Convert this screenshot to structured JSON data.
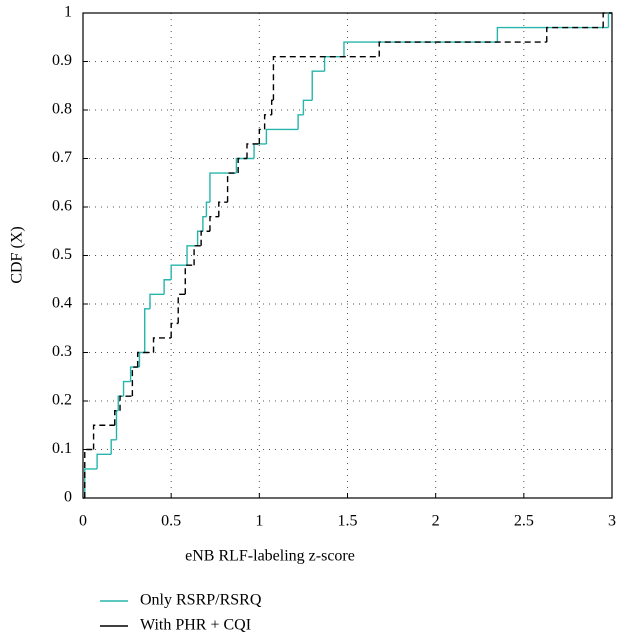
{
  "chart_data": {
    "type": "step",
    "xlabel": "eNB RLF-labeling z-score",
    "ylabel": "CDF (X)",
    "xlim": [
      0,
      3
    ],
    "ylim": [
      0,
      1
    ],
    "xticks": [
      0,
      0.5,
      1,
      1.5,
      2,
      2.5,
      3
    ],
    "yticks": [
      0,
      0.1,
      0.2,
      0.3,
      0.4,
      0.5,
      0.6,
      0.7,
      0.8,
      0.9,
      1
    ],
    "grid": true,
    "series": [
      {
        "name": "Only RSRP/RSRQ",
        "color": "#26b5ac",
        "dash": false,
        "x": [
          0,
          0.01,
          0.08,
          0.16,
          0.19,
          0.2,
          0.23,
          0.27,
          0.32,
          0.35,
          0.38,
          0.46,
          0.5,
          0.59,
          0.65,
          0.68,
          0.7,
          0.72,
          0.87,
          0.97,
          1.04,
          1.22,
          1.25,
          1.3,
          1.37,
          1.48,
          2.35,
          2.98
        ],
        "values": [
          0,
          0.06,
          0.09,
          0.12,
          0.18,
          0.21,
          0.24,
          0.27,
          0.3,
          0.39,
          0.42,
          0.45,
          0.48,
          0.52,
          0.55,
          0.58,
          0.61,
          0.67,
          0.7,
          0.73,
          0.76,
          0.79,
          0.82,
          0.88,
          0.91,
          0.94,
          0.97,
          1
        ]
      },
      {
        "name": "With PHR + CQI",
        "color": "#000000",
        "dash": true,
        "x": [
          0,
          0.01,
          0.06,
          0.18,
          0.21,
          0.28,
          0.31,
          0.4,
          0.5,
          0.54,
          0.58,
          0.63,
          0.67,
          0.72,
          0.77,
          0.82,
          0.88,
          0.93,
          1.0,
          1.03,
          1.07,
          1.08,
          1.68,
          2.63,
          2.95
        ],
        "values": [
          0,
          0.1,
          0.15,
          0.18,
          0.21,
          0.27,
          0.3,
          0.33,
          0.36,
          0.42,
          0.48,
          0.52,
          0.55,
          0.58,
          0.61,
          0.67,
          0.7,
          0.73,
          0.76,
          0.79,
          0.82,
          0.91,
          0.94,
          0.97,
          1
        ]
      }
    ]
  }
}
